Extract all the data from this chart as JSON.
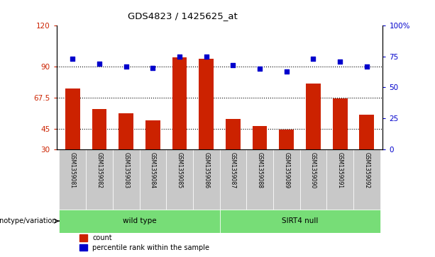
{
  "title": "GDS4823 / 1425625_at",
  "samples": [
    "GSM1359081",
    "GSM1359082",
    "GSM1359083",
    "GSM1359084",
    "GSM1359085",
    "GSM1359086",
    "GSM1359087",
    "GSM1359088",
    "GSM1359089",
    "GSM1359090",
    "GSM1359091",
    "GSM1359092"
  ],
  "counts": [
    74,
    59,
    56,
    51,
    97,
    96,
    52,
    47,
    44,
    78,
    67,
    55
  ],
  "percentiles": [
    73,
    69,
    67,
    66,
    75,
    75,
    68,
    65,
    63,
    73,
    71,
    67
  ],
  "groups": [
    "wild type",
    "wild type",
    "wild type",
    "wild type",
    "wild type",
    "wild type",
    "SIRT4 null",
    "SIRT4 null",
    "SIRT4 null",
    "SIRT4 null",
    "SIRT4 null",
    "SIRT4 null"
  ],
  "bar_color": "#CC2200",
  "dot_color": "#0000CC",
  "left_ylim": [
    30,
    120
  ],
  "right_ylim": [
    0,
    100
  ],
  "left_yticks": [
    30,
    45,
    67.5,
    90,
    120
  ],
  "left_yticklabels": [
    "30",
    "45",
    "67.5",
    "90",
    "120"
  ],
  "right_yticks": [
    0,
    25,
    50,
    75,
    100
  ],
  "right_yticklabels": [
    "0",
    "25",
    "50",
    "75",
    "100%"
  ],
  "hlines": [
    45,
    67.5,
    90
  ],
  "genotype_label": "genotype/variation",
  "group_spans": [
    [
      0,
      5,
      "wild type"
    ],
    [
      6,
      11,
      "SIRT4 null"
    ]
  ],
  "legend_count_label": "count",
  "legend_pct_label": "percentile rank within the sample",
  "bg_color_plot": "#FFFFFF",
  "sample_bg_color": "#C8C8C8",
  "group_color": "#77DD77",
  "bar_bottom": 30
}
